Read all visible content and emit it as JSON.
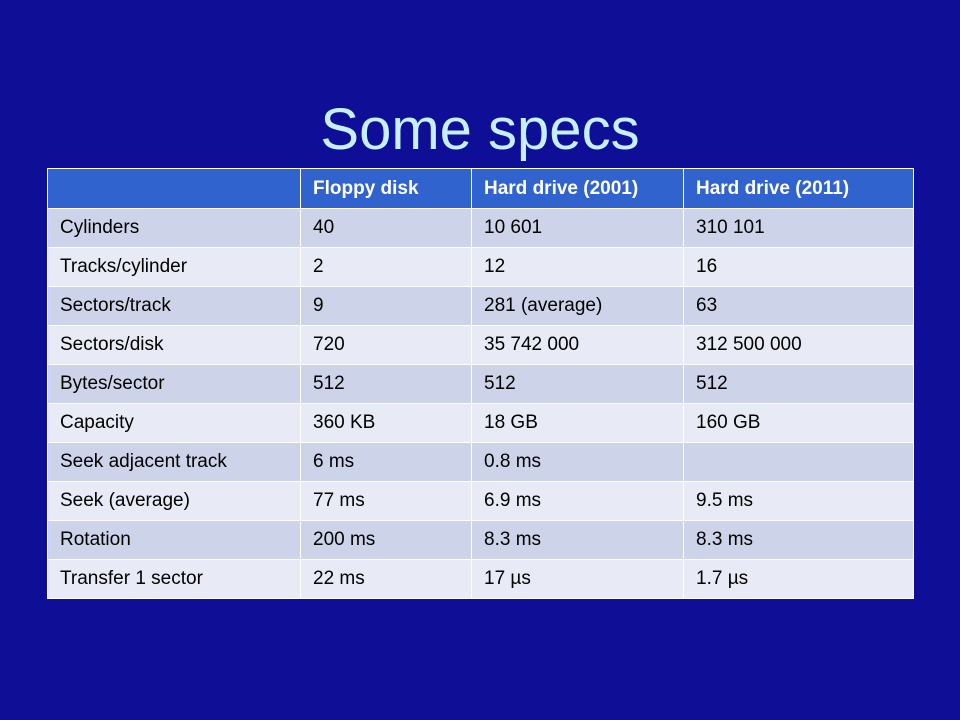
{
  "title": "Some specs",
  "table": {
    "headers": [
      "",
      "Floppy disk",
      "Hard drive (2001)",
      "Hard drive (2011)"
    ],
    "rows": [
      [
        "Cylinders",
        "40",
        "10 601",
        "310 101"
      ],
      [
        "Tracks/cylinder",
        "2",
        "12",
        "16"
      ],
      [
        "Sectors/track",
        "9",
        "281 (average)",
        "63"
      ],
      [
        "Sectors/disk",
        "720",
        "35 742 000",
        "312 500 000"
      ],
      [
        "Bytes/sector",
        "512",
        "512",
        "512"
      ],
      [
        "Capacity",
        "360 KB",
        "18 GB",
        "160 GB"
      ],
      [
        "Seek adjacent track",
        "6 ms",
        "0.8 ms",
        ""
      ],
      [
        "Seek (average)",
        "77 ms",
        "6.9 ms",
        "9.5 ms"
      ],
      [
        "Rotation",
        "200 ms",
        "8.3 ms",
        "8.3 ms"
      ],
      [
        "Transfer 1 sector",
        "22 ms",
        "17 µs",
        "1.7 µs"
      ]
    ]
  }
}
